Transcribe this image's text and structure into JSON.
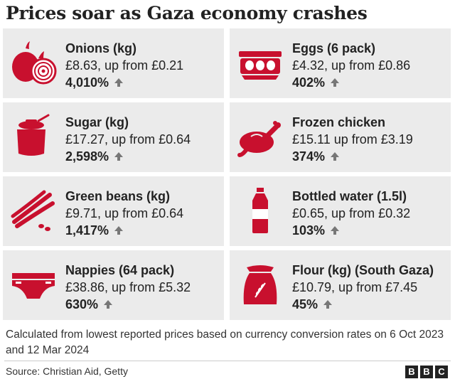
{
  "title": "Prices soar as Gaza economy crashes",
  "accent_color": "#c8102e",
  "items": [
    {
      "name": "Onions (kg)",
      "price": "£8.63, up from £0.21",
      "pct": "4,010%",
      "icon": "onion-icon"
    },
    {
      "name": "Eggs (6 pack)",
      "price": "£4.32, up from £0.86",
      "pct": "402%",
      "icon": "egg-carton-icon"
    },
    {
      "name": "Sugar (kg)",
      "price": "£17.27, up from £0.64",
      "pct": "2,598%",
      "icon": "sugar-bowl-icon"
    },
    {
      "name": "Frozen chicken",
      "price": "£15.11 up from £3.19",
      "pct": "374%",
      "icon": "roast-chicken-icon"
    },
    {
      "name": "Green beans (kg)",
      "price": "£9.71, up from £0.64",
      "pct": "1,417%",
      "icon": "green-beans-icon"
    },
    {
      "name": "Bottled water (1.5l)",
      "price": "£0.65, up from £0.32",
      "pct": "103%",
      "icon": "water-bottle-icon"
    },
    {
      "name": "Nappies (64 pack)",
      "price": "£38.86, up from £5.32",
      "pct": "630%",
      "icon": "nappy-icon"
    },
    {
      "name": "Flour (kg) (South Gaza)",
      "price": "£10.79, up from £7.45",
      "pct": "45%",
      "icon": "flour-sack-icon"
    }
  ],
  "note": "Calculated from lowest reported prices based on currency conversion rates on 6 Oct 2023 and 12 Mar 2024",
  "source": "Source: Christian Aid, Getty",
  "logo": [
    "B",
    "B",
    "C"
  ]
}
